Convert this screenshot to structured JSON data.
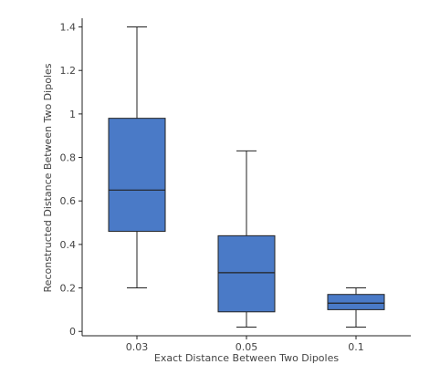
{
  "chart_data": {
    "type": "box",
    "title": "",
    "xlabel": "Exact Distance Between Two Dipoles",
    "ylabel": "Reconstructed Distance Between Two Dipoles",
    "categories": [
      "0.03",
      "0.05",
      "0.1"
    ],
    "boxes": [
      {
        "category": "0.03",
        "min": 0.2,
        "q1": 0.46,
        "median": 0.65,
        "q3": 0.98,
        "max": 1.4
      },
      {
        "category": "0.05",
        "min": 0.02,
        "q1": 0.09,
        "median": 0.27,
        "q3": 0.44,
        "max": 0.83
      },
      {
        "category": "0.1",
        "min": 0.02,
        "q1": 0.1,
        "median": 0.13,
        "q3": 0.17,
        "max": 0.2
      }
    ],
    "ylim": [
      -0.02,
      1.44
    ],
    "yticks": [
      0,
      0.2,
      0.4,
      0.6,
      0.8,
      1,
      1.2,
      1.4
    ],
    "ytick_labels": [
      "0",
      "0.2",
      "0.4",
      "0.6",
      "0.8",
      "1",
      "1.2",
      "1.4"
    ],
    "grid": false,
    "legend": "none",
    "colors": {
      "box_fill": "#4a7ac7",
      "box_edge": "#222222",
      "axis": "#222222"
    }
  }
}
